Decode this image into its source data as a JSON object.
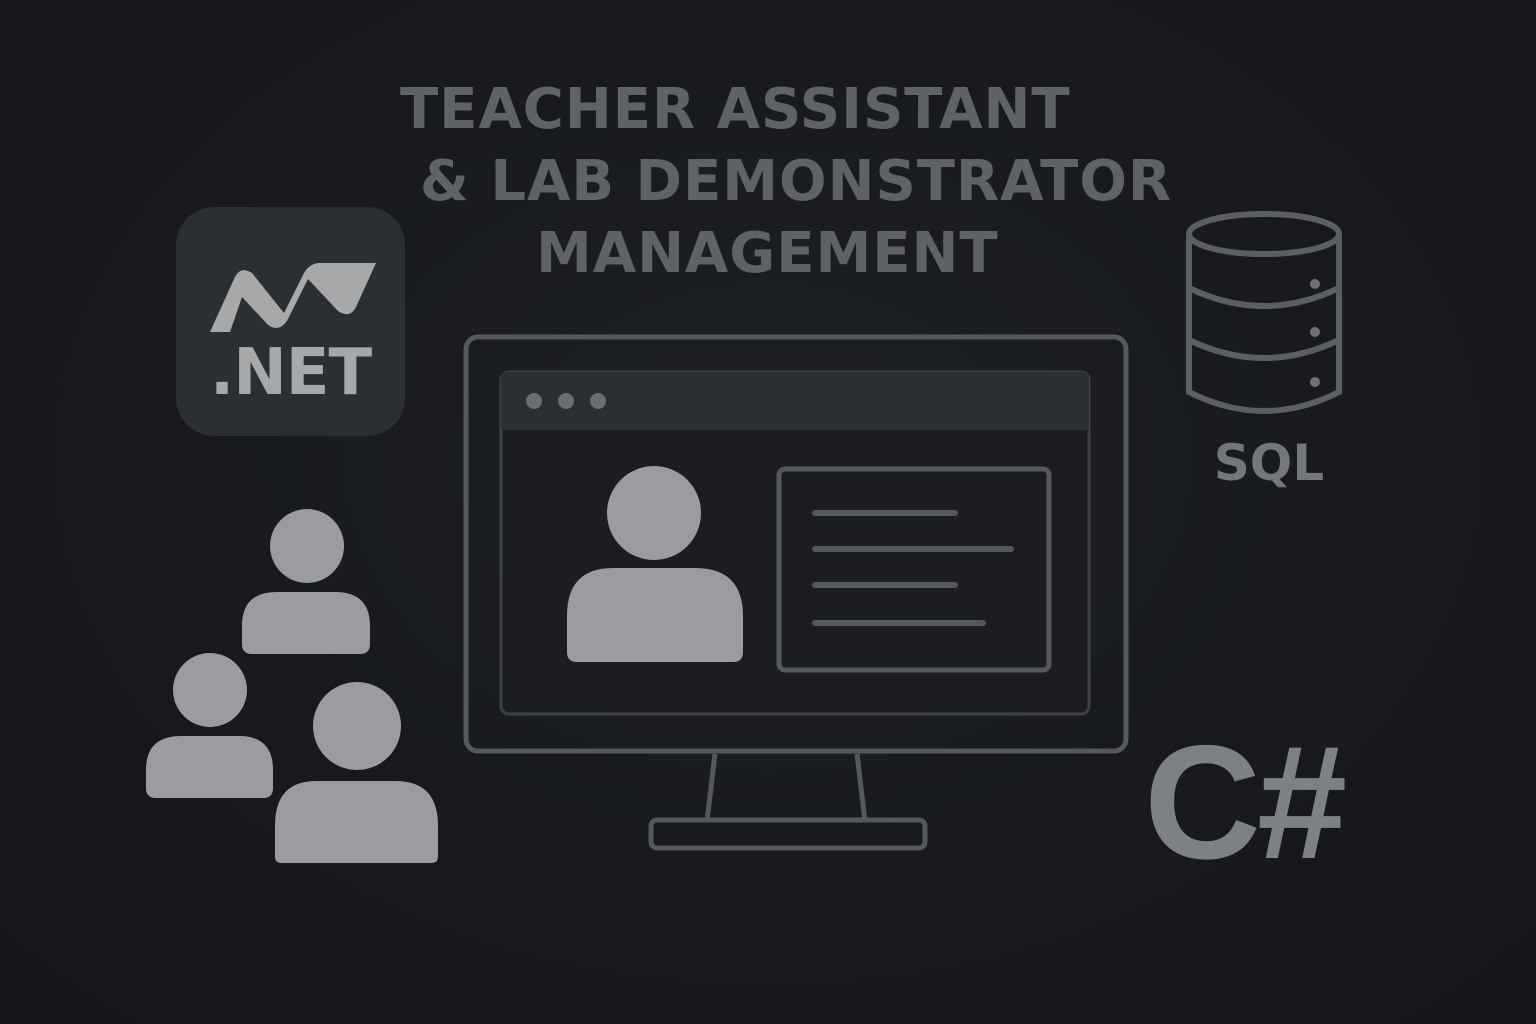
{
  "title": {
    "line1": "TEACHER ASSISTANT",
    "line2": "& LAB DEMONSTRATOR",
    "line3": "MANAGEMENT"
  },
  "dotnet": {
    "label": ".NET",
    "icon": "dotnet-logo-icon"
  },
  "database": {
    "label": "SQL",
    "icon": "database-cylinder-icon"
  },
  "csharp": {
    "label": "C#"
  },
  "group_icon": "people-group-icon",
  "monitor": {
    "icon": "monitor-icon",
    "window_dots": [
      "window-dot-1",
      "window-dot-2",
      "window-dot-3"
    ],
    "profile_icon": "user-avatar-icon",
    "detail_lines": 4
  },
  "colors": {
    "background": "#17191d",
    "title": "#5f6368",
    "icon_fill": "#9a9c9f",
    "outline": "#55585c",
    "tile": "#2b2e32"
  }
}
